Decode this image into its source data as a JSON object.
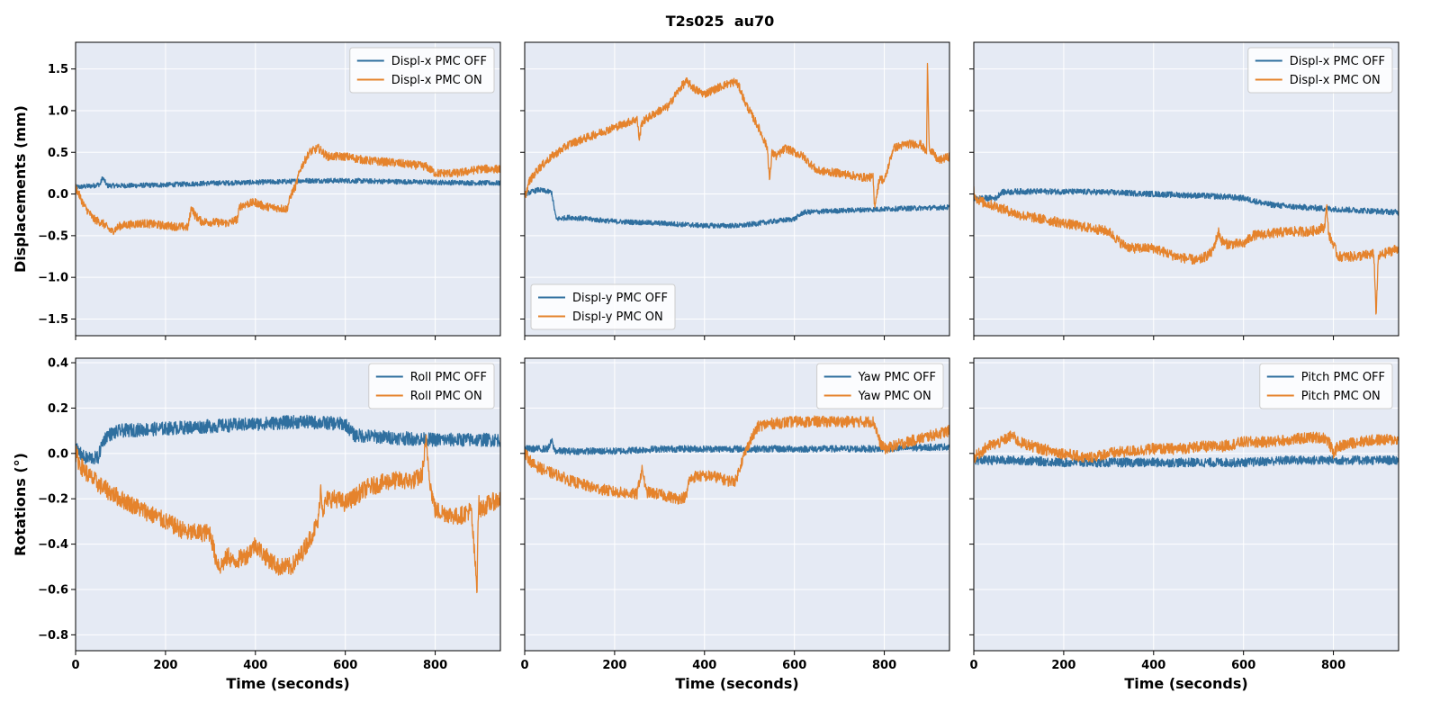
{
  "figure": {
    "title": "T2s025  au70"
  },
  "colors": {
    "off": "#2f6f9f",
    "on": "#e5832c",
    "panel_bg": "#e5eaf4",
    "grid": "#ffffff"
  },
  "chart_data": [
    {
      "type": "line",
      "panel": "top-left",
      "xlabel": "",
      "ylabel": "Displacements (mm)",
      "xlim": [
        0,
        945
      ],
      "ylim": [
        -1.7,
        1.82
      ],
      "xticks": [
        0,
        200,
        400,
        600,
        800
      ],
      "show_xticklabels": false,
      "yticks": [
        -1.5,
        -1.0,
        -0.5,
        0.0,
        0.5,
        1.0,
        1.5
      ],
      "ytick_labels": [
        "−1.5",
        "−1.0",
        "−0.5",
        "0.0",
        "0.5",
        "1.0",
        "1.5"
      ],
      "show_yticklabels": true,
      "grid": true,
      "legend": "upper right",
      "series": [
        {
          "name": "Displ-x PMC OFF",
          "color": "off",
          "noise": 0.03,
          "x": [
            0,
            40,
            55,
            60,
            70,
            120,
            200,
            300,
            400,
            480,
            500,
            600,
            700,
            800,
            945
          ],
          "y": [
            0.08,
            0.1,
            0.12,
            0.2,
            0.1,
            0.1,
            0.11,
            0.13,
            0.14,
            0.15,
            0.16,
            0.16,
            0.15,
            0.14,
            0.13
          ]
        },
        {
          "name": "Displ-x PMC ON",
          "color": "on",
          "noise": 0.05,
          "x": [
            0,
            20,
            40,
            60,
            80,
            100,
            150,
            200,
            250,
            258,
            265,
            280,
            340,
            360,
            365,
            380,
            400,
            420,
            470,
            480,
            490,
            500,
            520,
            540,
            560,
            600,
            650,
            700,
            750,
            780,
            800,
            850,
            900,
            945
          ],
          "y": [
            0.08,
            -0.15,
            -0.3,
            -0.35,
            -0.45,
            -0.38,
            -0.35,
            -0.38,
            -0.4,
            -0.15,
            -0.25,
            -0.33,
            -0.35,
            -0.3,
            -0.15,
            -0.12,
            -0.1,
            -0.15,
            -0.18,
            0.0,
            0.1,
            0.3,
            0.5,
            0.55,
            0.45,
            0.45,
            0.4,
            0.38,
            0.35,
            0.33,
            0.25,
            0.25,
            0.3,
            0.3
          ]
        }
      ]
    },
    {
      "type": "line",
      "panel": "top-middle",
      "xlabel": "",
      "ylabel": "",
      "xlim": [
        0,
        945
      ],
      "ylim": [
        -1.7,
        1.82
      ],
      "xticks": [
        0,
        200,
        400,
        600,
        800
      ],
      "show_xticklabels": false,
      "yticks": [
        -1.5,
        -1.0,
        -0.5,
        0.0,
        0.5,
        1.0,
        1.5
      ],
      "show_yticklabels": false,
      "grid": true,
      "legend": "lower left",
      "series": [
        {
          "name": "Displ-y PMC OFF",
          "color": "off",
          "noise": 0.03,
          "x": [
            0,
            30,
            60,
            65,
            70,
            100,
            200,
            300,
            400,
            480,
            550,
            600,
            620,
            700,
            800,
            945
          ],
          "y": [
            0.0,
            0.05,
            0.02,
            -0.15,
            -0.3,
            -0.28,
            -0.33,
            -0.35,
            -0.38,
            -0.38,
            -0.33,
            -0.3,
            -0.22,
            -0.2,
            -0.18,
            -0.16
          ]
        },
        {
          "name": "Displ-y PMC ON",
          "color": "on",
          "noise": 0.05,
          "x": [
            0,
            10,
            30,
            60,
            100,
            150,
            200,
            250,
            255,
            260,
            270,
            300,
            320,
            330,
            350,
            360,
            380,
            400,
            420,
            440,
            470,
            480,
            490,
            500,
            520,
            540,
            545,
            550,
            560,
            580,
            620,
            650,
            700,
            750,
            775,
            778,
            790,
            800,
            820,
            850,
            880,
            894,
            896,
            900,
            920,
            945
          ],
          "y": [
            -0.05,
            0.15,
            0.3,
            0.45,
            0.6,
            0.7,
            0.8,
            0.9,
            0.65,
            0.85,
            0.9,
            1.0,
            1.05,
            1.15,
            1.3,
            1.35,
            1.25,
            1.2,
            1.25,
            1.3,
            1.35,
            1.25,
            1.1,
            1.0,
            0.8,
            0.55,
            0.15,
            0.5,
            0.45,
            0.55,
            0.45,
            0.28,
            0.25,
            0.2,
            0.2,
            -0.15,
            0.2,
            0.15,
            0.55,
            0.6,
            0.6,
            0.5,
            1.55,
            0.55,
            0.4,
            0.45
          ]
        }
      ]
    },
    {
      "type": "line",
      "panel": "top-right",
      "xlabel": "",
      "ylabel": "",
      "xlim": [
        0,
        945
      ],
      "ylim": [
        -1.7,
        1.82
      ],
      "xticks": [
        0,
        200,
        400,
        600,
        800
      ],
      "show_xticklabels": false,
      "yticks": [
        -1.5,
        -1.0,
        -0.5,
        0.0,
        0.5,
        1.0,
        1.5
      ],
      "show_yticklabels": false,
      "grid": true,
      "legend": "upper right",
      "series": [
        {
          "name": "Displ-x PMC OFF",
          "color": "off",
          "noise": 0.035,
          "x": [
            0,
            50,
            60,
            100,
            200,
            300,
            400,
            500,
            550,
            600,
            650,
            700,
            800,
            945
          ],
          "y": [
            -0.05,
            -0.05,
            0.02,
            0.03,
            0.03,
            0.02,
            0.0,
            -0.02,
            -0.03,
            -0.05,
            -0.12,
            -0.15,
            -0.18,
            -0.22
          ]
        },
        {
          "name": "Displ-x PMC ON",
          "color": "on",
          "noise": 0.06,
          "x": [
            0,
            5,
            20,
            50,
            100,
            150,
            200,
            250,
            300,
            320,
            330,
            350,
            400,
            450,
            500,
            530,
            545,
            550,
            560,
            600,
            620,
            700,
            750,
            780,
            785,
            790,
            800,
            810,
            850,
            890,
            895,
            900,
            920,
            945
          ],
          "y": [
            0.05,
            -0.05,
            -0.1,
            -0.15,
            -0.25,
            -0.3,
            -0.35,
            -0.4,
            -0.45,
            -0.55,
            -0.6,
            -0.65,
            -0.65,
            -0.75,
            -0.8,
            -0.7,
            -0.45,
            -0.55,
            -0.6,
            -0.6,
            -0.5,
            -0.45,
            -0.45,
            -0.4,
            -0.15,
            -0.5,
            -0.6,
            -0.75,
            -0.75,
            -0.72,
            -1.45,
            -0.75,
            -0.7,
            -0.65
          ]
        }
      ]
    },
    {
      "type": "line",
      "panel": "bottom-left",
      "xlabel": "Time (seconds)",
      "ylabel": "Rotations (°)",
      "xlim": [
        0,
        945
      ],
      "ylim": [
        -0.87,
        0.42
      ],
      "xticks": [
        0,
        200,
        400,
        600,
        800
      ],
      "show_xticklabels": true,
      "yticks": [
        -0.8,
        -0.6,
        -0.4,
        -0.2,
        0.0,
        0.2,
        0.4
      ],
      "ytick_labels": [
        "−0.8",
        "−0.6",
        "−0.4",
        "−0.2",
        "0.0",
        "0.2",
        "0.4"
      ],
      "show_yticklabels": true,
      "grid": true,
      "legend": "upper right",
      "series": [
        {
          "name": "Roll PMC OFF",
          "color": "off",
          "noise": 0.03,
          "x": [
            0,
            20,
            50,
            60,
            70,
            100,
            200,
            300,
            400,
            500,
            600,
            620,
            700,
            800,
            945
          ],
          "y": [
            0.02,
            -0.02,
            -0.02,
            0.05,
            0.08,
            0.1,
            0.11,
            0.12,
            0.13,
            0.14,
            0.13,
            0.08,
            0.07,
            0.06,
            0.06
          ]
        },
        {
          "name": "Roll PMC ON",
          "color": "on",
          "noise": 0.04,
          "x": [
            0,
            10,
            30,
            60,
            100,
            150,
            200,
            250,
            300,
            310,
            320,
            330,
            340,
            350,
            380,
            400,
            420,
            450,
            480,
            500,
            520,
            540,
            545,
            550,
            560,
            580,
            600,
            650,
            700,
            750,
            770,
            780,
            790,
            800,
            850,
            880,
            893,
            895,
            897,
            900,
            920,
            945
          ],
          "y": [
            0.0,
            -0.05,
            -0.1,
            -0.15,
            -0.2,
            -0.25,
            -0.3,
            -0.35,
            -0.35,
            -0.45,
            -0.5,
            -0.48,
            -0.45,
            -0.48,
            -0.45,
            -0.4,
            -0.45,
            -0.5,
            -0.5,
            -0.45,
            -0.38,
            -0.3,
            -0.15,
            -0.25,
            -0.2,
            -0.2,
            -0.22,
            -0.15,
            -0.12,
            -0.12,
            -0.1,
            0.05,
            -0.15,
            -0.25,
            -0.28,
            -0.25,
            -0.6,
            -0.3,
            -0.22,
            -0.25,
            -0.22,
            -0.2
          ]
        }
      ]
    },
    {
      "type": "line",
      "panel": "bottom-middle",
      "xlabel": "Time (seconds)",
      "ylabel": "",
      "xlim": [
        0,
        945
      ],
      "ylim": [
        -0.87,
        0.42
      ],
      "xticks": [
        0,
        200,
        400,
        600,
        800
      ],
      "show_xticklabels": true,
      "yticks": [
        -0.8,
        -0.6,
        -0.4,
        -0.2,
        0.0,
        0.2,
        0.4
      ],
      "show_yticklabels": false,
      "grid": true,
      "legend": "upper right",
      "series": [
        {
          "name": "Yaw PMC OFF",
          "color": "off",
          "noise": 0.015,
          "x": [
            0,
            50,
            55,
            60,
            65,
            70,
            100,
            200,
            300,
            400,
            500,
            600,
            700,
            800,
            945
          ],
          "y": [
            0.02,
            0.02,
            0.03,
            0.06,
            0.02,
            0.01,
            0.01,
            0.01,
            0.02,
            0.02,
            0.02,
            0.02,
            0.02,
            0.02,
            0.03
          ]
        },
        {
          "name": "Yaw PMC ON",
          "color": "on",
          "noise": 0.025,
          "x": [
            0,
            20,
            50,
            80,
            100,
            150,
            200,
            250,
            255,
            262,
            270,
            300,
            340,
            360,
            365,
            380,
            420,
            450,
            470,
            480,
            490,
            500,
            520,
            540,
            600,
            650,
            700,
            750,
            775,
            780,
            790,
            800,
            850,
            945
          ],
          "y": [
            0.0,
            -0.05,
            -0.08,
            -0.1,
            -0.12,
            -0.15,
            -0.17,
            -0.18,
            -0.12,
            -0.07,
            -0.17,
            -0.18,
            -0.2,
            -0.19,
            -0.12,
            -0.1,
            -0.1,
            -0.12,
            -0.12,
            -0.05,
            0.0,
            0.05,
            0.12,
            0.13,
            0.14,
            0.14,
            0.14,
            0.14,
            0.14,
            0.12,
            0.05,
            0.02,
            0.05,
            0.1
          ]
        }
      ]
    },
    {
      "type": "line",
      "panel": "bottom-right",
      "xlabel": "Time (seconds)",
      "ylabel": "",
      "xlim": [
        0,
        945
      ],
      "ylim": [
        -0.87,
        0.42
      ],
      "xticks": [
        0,
        200,
        400,
        600,
        800
      ],
      "show_xticklabels": true,
      "yticks": [
        -0.8,
        -0.6,
        -0.4,
        -0.2,
        0.0,
        0.2,
        0.4
      ],
      "show_yticklabels": false,
      "grid": true,
      "legend": "upper right",
      "series": [
        {
          "name": "Pitch PMC OFF",
          "color": "off",
          "noise": 0.02,
          "x": [
            0,
            100,
            200,
            300,
            400,
            500,
            600,
            700,
            800,
            945
          ],
          "y": [
            -0.03,
            -0.03,
            -0.04,
            -0.04,
            -0.04,
            -0.04,
            -0.04,
            -0.03,
            -0.03,
            -0.03
          ]
        },
        {
          "name": "Pitch PMC ON",
          "color": "on",
          "noise": 0.025,
          "x": [
            0,
            30,
            60,
            85,
            100,
            150,
            200,
            250,
            300,
            350,
            400,
            450,
            500,
            550,
            600,
            650,
            700,
            750,
            780,
            790,
            800,
            810,
            850,
            900,
            945
          ],
          "y": [
            -0.02,
            0.03,
            0.05,
            0.08,
            0.05,
            0.02,
            0.0,
            -0.02,
            0.0,
            0.01,
            0.02,
            0.02,
            0.03,
            0.03,
            0.05,
            0.05,
            0.06,
            0.07,
            0.07,
            0.05,
            0.0,
            0.03,
            0.05,
            0.06,
            0.06
          ]
        }
      ]
    }
  ]
}
